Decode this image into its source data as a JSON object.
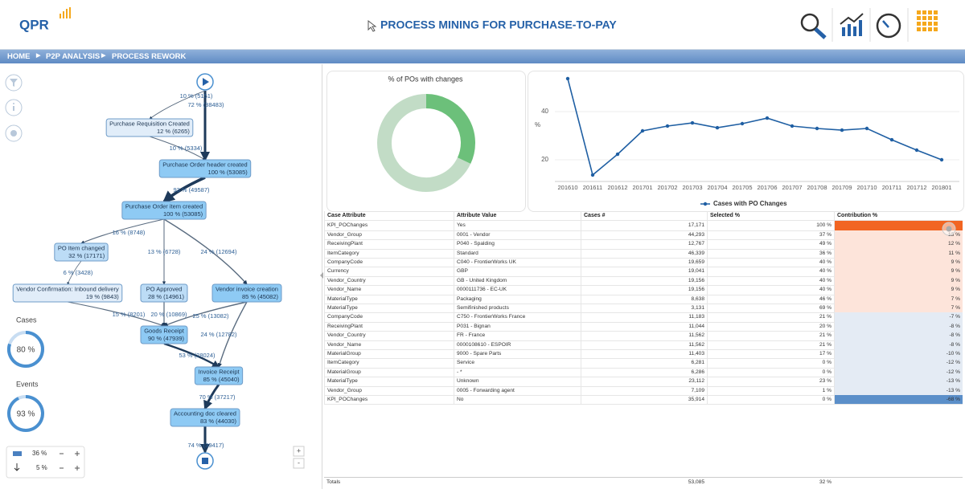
{
  "header": {
    "logo": "QPR",
    "title": "PROCESS MINING FOR PURCHASE-TO-PAY"
  },
  "breadcrumb": [
    "HOME",
    "P2P ANALYSIS",
    "PROCESS REWORK"
  ],
  "process": {
    "nodes": [
      {
        "label": "Purchase Requisition Created",
        "stat": "12 % (6265)"
      },
      {
        "label": "Purchase Order header created",
        "stat": "100 % (53085)"
      },
      {
        "label": "Purchase Order item created",
        "stat": "100 % (53085)"
      },
      {
        "label": "PO Item changed",
        "stat": "32 % (17171)"
      },
      {
        "label": "Vendor Confirmation: Inbound delivery",
        "stat": "19 % (9843)"
      },
      {
        "label": "PO Approved",
        "stat": "28 % (14961)"
      },
      {
        "label": "Vendor invoice creation",
        "stat": "85 % (45082)"
      },
      {
        "label": "Goods Receipt",
        "stat": "90 % (47939)"
      },
      {
        "label": "Invoice Receipt",
        "stat": "85 % (45040)"
      },
      {
        "label": "Accounting doc cleared",
        "stat": "83 % (44030)"
      }
    ],
    "edges": [
      "72 % (38483)",
      "10 % (5151)",
      "10 % (5334)",
      "93 % (49587)",
      "16 % (8748)",
      "13 % (6728)",
      "24 % (12694)",
      "6 % (3428)",
      "15 % (8201)",
      "20 % (10869)",
      "25 % (13082)",
      "24 % (12782)",
      "53 % (28024)",
      "70 % (37217)",
      "74 % (39417)"
    ]
  },
  "gauges": [
    {
      "label": "Cases",
      "value": 80,
      "value_label": "80 %"
    },
    {
      "label": "Events",
      "value": 93,
      "value_label": "93 %"
    }
  ],
  "controls": [
    "36 %",
    "5 %"
  ],
  "chart_data": [
    {
      "type": "pie",
      "donut": true,
      "title": "% of POs with changes",
      "values": [
        32,
        68
      ],
      "colors": [
        "#6cc07a",
        "#c2dcc6"
      ]
    },
    {
      "type": "line",
      "y_label": "%",
      "categories": [
        "201610",
        "201611",
        "201612",
        "201701",
        "201702",
        "201703",
        "201704",
        "201705",
        "201706",
        "201707",
        "201708",
        "201709",
        "201710",
        "201711",
        "201712",
        "201801"
      ],
      "series": [
        {
          "name": "Cases with PO Changes",
          "color": "#1f5fa3",
          "values": [
            53.7,
            13.7,
            22.3,
            32,
            34,
            35.3,
            33.3,
            35,
            37.3,
            34,
            33,
            32.3,
            33,
            28.3,
            24,
            20
          ]
        }
      ],
      "ylim": [
        11,
        56
      ],
      "yticks": [
        20,
        40
      ],
      "grid": true,
      "legend": "bottom"
    }
  ],
  "table": {
    "columns": [
      "Case Attribute",
      "Attribute Value",
      "Cases #",
      "Selected %",
      "Contribution %"
    ],
    "rows": [
      [
        "KPI_POChanges",
        "Yes",
        "17,171",
        "100 %"
      ],
      [
        "Vendor_Group",
        "0001 - Vendor",
        "44,293",
        "37 %",
        "13 %"
      ],
      [
        "ReceivingPlant",
        "P040 - Spalding",
        "12,767",
        "49 %",
        "12 %"
      ],
      [
        "ItemCategory",
        "Standard",
        "46,339",
        "36 %",
        "11 %"
      ],
      [
        "CompanyCode",
        "C040 - FrontierWorks UK",
        "19,659",
        "40 %",
        "9 %"
      ],
      [
        "Currency",
        "GBP",
        "19,041",
        "40 %",
        "9 %"
      ],
      [
        "Vendor_Country",
        "GB - United Kingdom",
        "19,156",
        "40 %",
        "9 %"
      ],
      [
        "Vendor_Name",
        "0000111736 - EC-UK",
        "19,156",
        "40 %",
        "9 %"
      ],
      [
        "MaterialType",
        "Packaging",
        "8,638",
        "46 %",
        "7 %"
      ],
      [
        "MaterialType",
        "Semifinished products",
        "3,131",
        "69 %",
        "7 %"
      ],
      [
        "CompanyCode",
        "C750 - FrontierWorks France",
        "11,183",
        "21 %",
        "-7 %"
      ],
      [
        "ReceivingPlant",
        "P031 - Bignan",
        "11,044",
        "20 %",
        "-8 %"
      ],
      [
        "Vendor_Country",
        "FR - France",
        "11,562",
        "21 %",
        "-8 %"
      ],
      [
        "Vendor_Name",
        "0000108610 - ESPOIR",
        "11,562",
        "21 %",
        "-8 %"
      ],
      [
        "MaterialGroup",
        "9000 - Spare Parts",
        "11,403",
        "17 %",
        "-10 %"
      ],
      [
        "ItemCategory",
        "Service",
        "6,281",
        "0 %",
        "-12 %"
      ],
      [
        "MaterialGroup",
        "- *",
        "6,286",
        "0 %",
        "-12 %"
      ],
      [
        "MaterialType",
        "Unknown",
        "23,112",
        "23 %",
        "-13 %"
      ],
      [
        "Vendor_Group",
        "0005 - Forwarding agent",
        "7,109",
        "1 %",
        "-13 %"
      ],
      [
        "KPI_POChanges",
        "No",
        "35,914",
        "0 %",
        "-68 %"
      ]
    ],
    "totals": [
      "Totals",
      "53,085",
      "32 %"
    ]
  },
  "zoom": [
    "+",
    "-"
  ]
}
